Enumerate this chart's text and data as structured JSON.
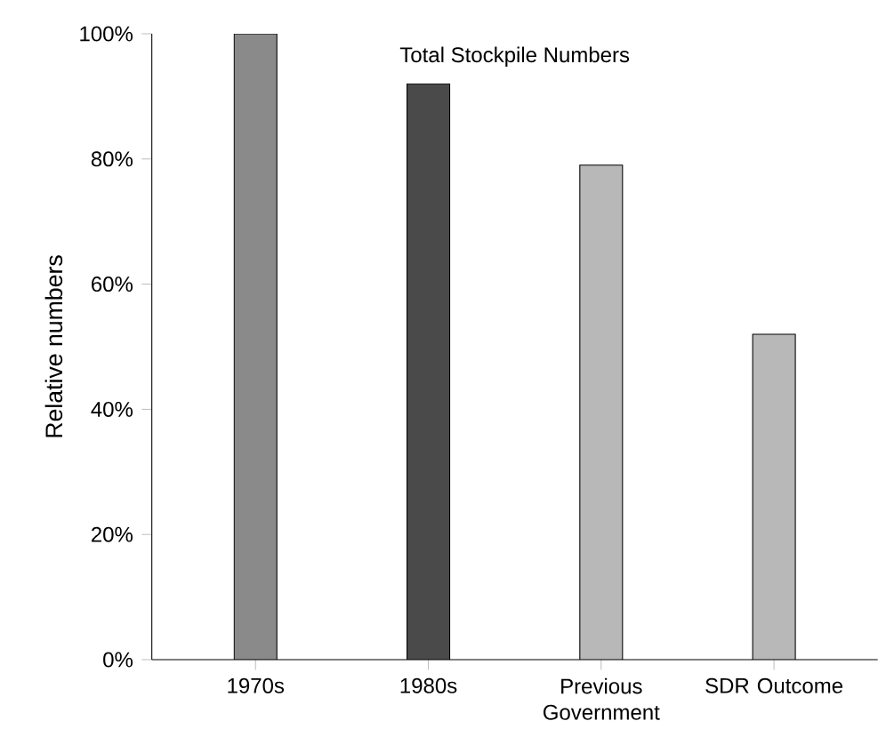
{
  "chart_data": {
    "type": "bar",
    "title": "Total Stockpile Numbers",
    "ylabel": "Relative numbers",
    "categories": [
      "1970s",
      "1980s",
      "Previous Government",
      "SDR Outcome"
    ],
    "values": [
      100,
      92,
      79,
      52
    ],
    "colors": [
      "#8a8a8a",
      "#4a4a4a",
      "#b8b8b8",
      "#b8b8b8"
    ],
    "ylim": [
      0,
      100
    ],
    "yticks": [
      {
        "value": 0,
        "label": "0%"
      },
      {
        "value": 20,
        "label": "20%"
      },
      {
        "value": 40,
        "label": "40%"
      },
      {
        "value": 60,
        "label": "60%"
      },
      {
        "value": 80,
        "label": "80%"
      },
      {
        "value": 100,
        "label": "100%"
      }
    ]
  }
}
